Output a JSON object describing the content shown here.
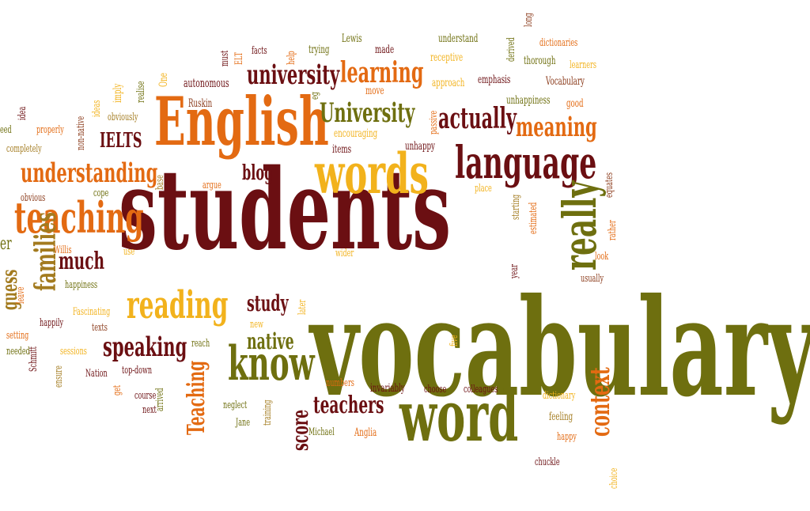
{
  "word_cloud": {
    "words": [
      "vocabulary",
      "students",
      "English",
      "word",
      "words",
      "language",
      "teaching",
      "know",
      "reading",
      "understanding",
      "university",
      "learning",
      "University",
      "actually",
      "meaning",
      "really",
      "speaking",
      "context",
      "families",
      "teachers",
      "much",
      "study",
      "native",
      "score",
      "Teaching",
      "IELTS",
      "blog",
      "guess",
      "items",
      "unhappy",
      "encouraging",
      "Ruskin",
      "autonomous",
      "One",
      "realise",
      "imply",
      "obviously",
      "ideas",
      "non-native",
      "idea",
      "properly",
      "completely",
      "base",
      "cope",
      "argue",
      "obvious",
      "Willis",
      "use",
      "happiness",
      "leave",
      "happily",
      "setting",
      "texts",
      "Fascinating",
      "sessions",
      "needed",
      "Schmitt",
      "Nation",
      "ensure",
      "get",
      "top-down",
      "course",
      "next",
      "arrived",
      "reach",
      "new",
      "later",
      "Jane",
      "neglect",
      "training",
      "Michael",
      "Anglia",
      "numbers",
      "invariably",
      "choose",
      "colleagues",
      "five",
      "wider",
      "year",
      "look",
      "usually",
      "rather",
      "estimated",
      "starting",
      "place",
      "equates",
      "good",
      "unhappiness",
      "Vocabulary",
      "learners",
      "dictionaries",
      "thorough",
      "derived",
      "long",
      "emphasis",
      "approach",
      "receptive",
      "understand",
      "made",
      "Lewis",
      "trying",
      "help",
      "eg",
      "move",
      "passive",
      "facts",
      "ELT",
      "must",
      "dictionary",
      "feeling",
      "happy",
      "chuckle",
      "choice",
      "er",
      "eed"
    ]
  },
  "colors": {
    "dark_red": "#6b0f12",
    "olive": "#6e6f0f",
    "orange": "#e36a12",
    "yellow": "#f2b21c",
    "brown": "#8a3a1a",
    "gold_brown": "#a37b1f"
  }
}
